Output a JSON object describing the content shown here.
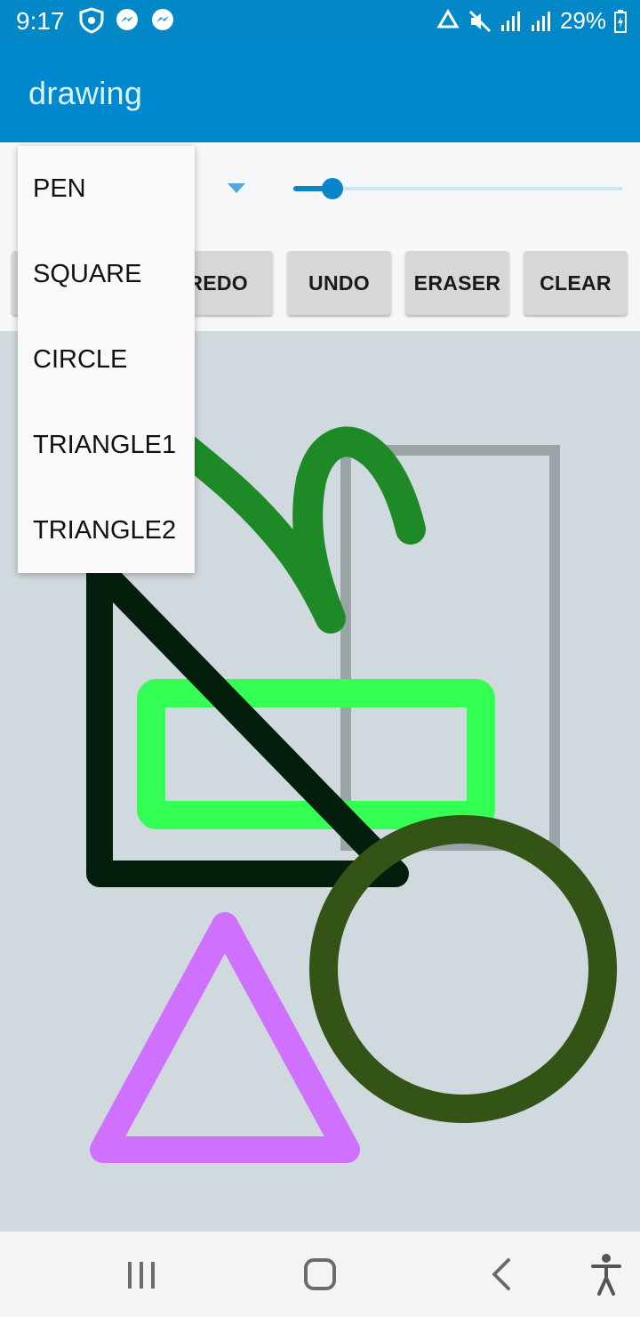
{
  "status_bar": {
    "time": "9:17",
    "battery": "29%",
    "icons_left": [
      "shield-icon",
      "messenger-icon",
      "messenger-icon"
    ],
    "icons_right": [
      "data-saver-icon",
      "mute-icon",
      "signal-icon",
      "signal-icon",
      "battery-charging-icon"
    ]
  },
  "app_bar": {
    "title": "drawing"
  },
  "toolbar": {
    "shape_selector": {
      "arrow_icon": "dropdown-arrow-icon"
    },
    "stroke_slider": {
      "value_fraction": 0.12
    },
    "buttons": {
      "redo": "REDO",
      "undo": "UNDO",
      "eraser": "ERASER",
      "clear": "CLEAR"
    }
  },
  "shape_menu": {
    "items": [
      "PEN",
      "SQUARE",
      "CIRCLE",
      "TRIANGLE1",
      "TRIANGLE2"
    ]
  },
  "canvas": {
    "strokes": [
      {
        "kind": "pen",
        "color": "#1e8a27"
      },
      {
        "kind": "square",
        "color": "#9aa3a6"
      },
      {
        "kind": "square",
        "color": "#33ff55"
      },
      {
        "kind": "triangle",
        "color": "#041e0d"
      },
      {
        "kind": "circle",
        "color": "#345317"
      },
      {
        "kind": "triangle",
        "color": "#d070ff"
      }
    ]
  },
  "nav_bar": {
    "buttons": [
      "recents-icon",
      "home-icon",
      "back-icon",
      "accessibility-icon"
    ]
  }
}
